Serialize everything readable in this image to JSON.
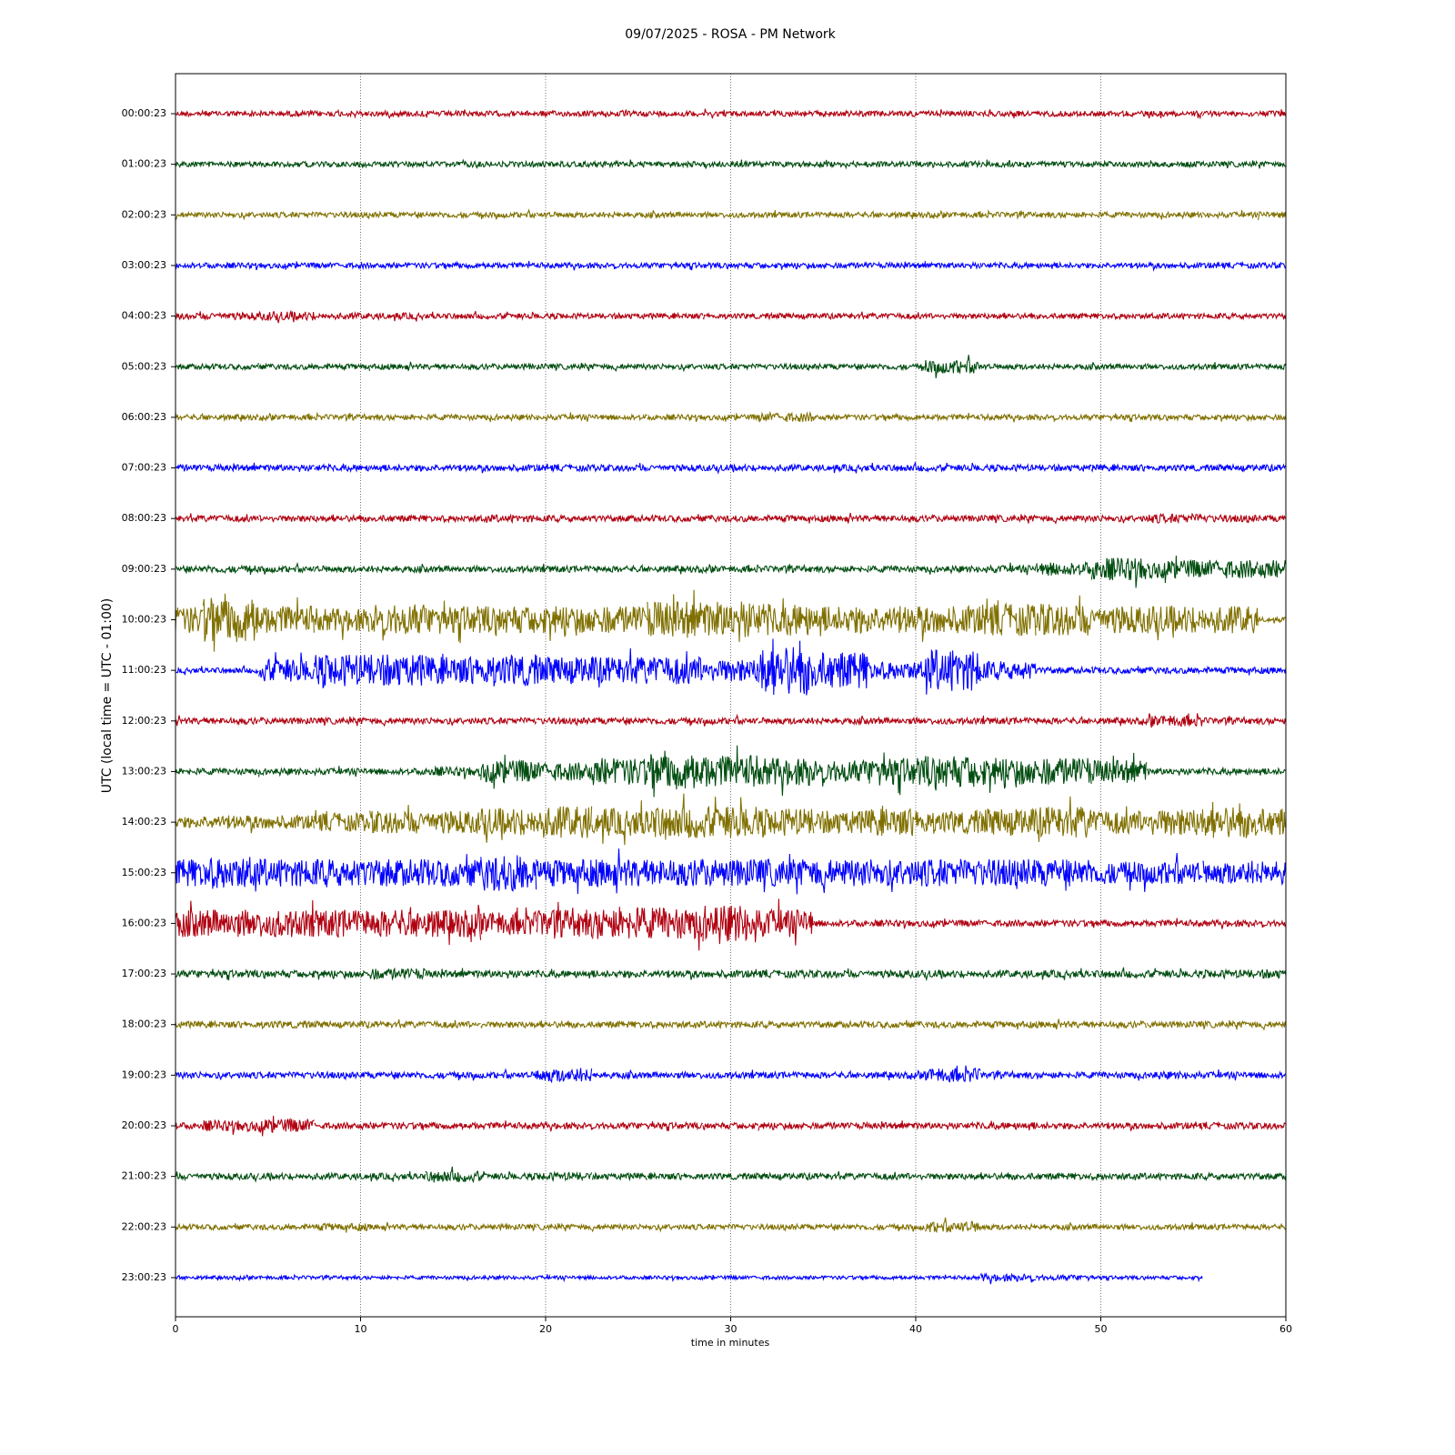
{
  "chart_data": {
    "type": "helicorder",
    "title": "09/07/2025 - ROSA - PM Network",
    "x_label": "time in minutes",
    "y_label": "UTC (local time = UTC - 01:00)",
    "xlim": [
      0,
      60
    ],
    "xticks": [
      0,
      10,
      20,
      30,
      40,
      50,
      60
    ],
    "grid": true,
    "x": [
      0,
      3,
      6,
      9,
      12,
      15,
      18,
      21,
      24,
      27,
      30,
      33,
      36,
      39,
      42,
      45,
      48,
      51,
      54,
      57,
      60
    ],
    "series": [
      {
        "name": "00:00:23",
        "color": "#b00010",
        "values": [
          0.06,
          0.06,
          0.06,
          0.06,
          0.06,
          0.06,
          0.06,
          0.06,
          0.06,
          0.06,
          0.06,
          0.06,
          0.06,
          0.06,
          0.06,
          0.06,
          0.06,
          0.06,
          0.06,
          0.06,
          0.06
        ]
      },
      {
        "name": "01:00:23",
        "color": "#004d10",
        "values": [
          0.06,
          0.06,
          0.06,
          0.06,
          0.06,
          0.06,
          0.06,
          0.06,
          0.06,
          0.06,
          0.06,
          0.06,
          0.06,
          0.06,
          0.06,
          0.06,
          0.06,
          0.06,
          0.06,
          0.06,
          0.06
        ]
      },
      {
        "name": "02:00:23",
        "color": "#807000",
        "values": [
          0.06,
          0.06,
          0.06,
          0.06,
          0.06,
          0.06,
          0.06,
          0.06,
          0.06,
          0.06,
          0.06,
          0.06,
          0.06,
          0.06,
          0.06,
          0.06,
          0.06,
          0.06,
          0.06,
          0.06,
          0.07
        ]
      },
      {
        "name": "03:00:23",
        "color": "#0000ff",
        "values": [
          0.06,
          0.06,
          0.06,
          0.06,
          0.06,
          0.06,
          0.06,
          0.06,
          0.06,
          0.06,
          0.06,
          0.06,
          0.06,
          0.06,
          0.06,
          0.06,
          0.06,
          0.06,
          0.06,
          0.06,
          0.06
        ]
      },
      {
        "name": "04:00:23",
        "color": "#b00010",
        "values": [
          0.07,
          0.08,
          0.1,
          0.07,
          0.07,
          0.06,
          0.06,
          0.06,
          0.06,
          0.06,
          0.06,
          0.06,
          0.06,
          0.06,
          0.06,
          0.06,
          0.06,
          0.06,
          0.06,
          0.06,
          0.06
        ]
      },
      {
        "name": "05:00:23",
        "color": "#004d10",
        "values": [
          0.06,
          0.06,
          0.06,
          0.06,
          0.06,
          0.06,
          0.06,
          0.06,
          0.06,
          0.06,
          0.06,
          0.06,
          0.06,
          0.06,
          0.15,
          0.06,
          0.06,
          0.06,
          0.06,
          0.06,
          0.06
        ]
      },
      {
        "name": "06:00:23",
        "color": "#807000",
        "values": [
          0.06,
          0.06,
          0.06,
          0.06,
          0.06,
          0.06,
          0.06,
          0.06,
          0.06,
          0.06,
          0.06,
          0.1,
          0.06,
          0.06,
          0.06,
          0.06,
          0.06,
          0.06,
          0.06,
          0.06,
          0.06
        ]
      },
      {
        "name": "07:00:23",
        "color": "#0000ff",
        "values": [
          0.07,
          0.07,
          0.07,
          0.07,
          0.07,
          0.07,
          0.07,
          0.07,
          0.07,
          0.07,
          0.07,
          0.07,
          0.07,
          0.07,
          0.07,
          0.07,
          0.07,
          0.07,
          0.07,
          0.07,
          0.07
        ]
      },
      {
        "name": "08:00:23",
        "color": "#b00010",
        "values": [
          0.07,
          0.07,
          0.07,
          0.07,
          0.07,
          0.07,
          0.08,
          0.07,
          0.07,
          0.07,
          0.07,
          0.07,
          0.07,
          0.07,
          0.07,
          0.07,
          0.07,
          0.07,
          0.1,
          0.08,
          0.07
        ]
      },
      {
        "name": "09:00:23",
        "color": "#004d10",
        "values": [
          0.07,
          0.08,
          0.07,
          0.07,
          0.07,
          0.07,
          0.07,
          0.07,
          0.07,
          0.07,
          0.07,
          0.07,
          0.07,
          0.07,
          0.07,
          0.08,
          0.15,
          0.25,
          0.2,
          0.2,
          0.2
        ]
      },
      {
        "name": "10:00:23",
        "color": "#807000",
        "values": [
          0.3,
          0.5,
          0.3,
          0.25,
          0.35,
          0.3,
          0.3,
          0.3,
          0.3,
          0.4,
          0.4,
          0.35,
          0.3,
          0.3,
          0.3,
          0.35,
          0.35,
          0.3,
          0.3,
          0.3,
          0.05
        ]
      },
      {
        "name": "11:00:23",
        "color": "#0000ff",
        "values": [
          0.06,
          0.06,
          0.25,
          0.35,
          0.35,
          0.3,
          0.35,
          0.3,
          0.3,
          0.3,
          0.25,
          0.55,
          0.4,
          0.2,
          0.45,
          0.2,
          0.07,
          0.07,
          0.07,
          0.07,
          0.07
        ]
      },
      {
        "name": "12:00:23",
        "color": "#b00010",
        "values": [
          0.07,
          0.07,
          0.07,
          0.07,
          0.07,
          0.07,
          0.07,
          0.07,
          0.07,
          0.07,
          0.07,
          0.07,
          0.07,
          0.07,
          0.07,
          0.07,
          0.07,
          0.07,
          0.12,
          0.07,
          0.07
        ]
      },
      {
        "name": "13:00:23",
        "color": "#004d10",
        "values": [
          0.07,
          0.07,
          0.07,
          0.07,
          0.07,
          0.1,
          0.25,
          0.2,
          0.3,
          0.4,
          0.35,
          0.3,
          0.25,
          0.3,
          0.35,
          0.3,
          0.3,
          0.25,
          0.07,
          0.07,
          0.07
        ]
      },
      {
        "name": "14:00:23",
        "color": "#807000",
        "values": [
          0.12,
          0.15,
          0.15,
          0.2,
          0.25,
          0.25,
          0.3,
          0.35,
          0.3,
          0.35,
          0.35,
          0.3,
          0.25,
          0.3,
          0.25,
          0.3,
          0.35,
          0.25,
          0.3,
          0.35,
          0.3
        ]
      },
      {
        "name": "15:00:23",
        "color": "#0000ff",
        "values": [
          0.3,
          0.35,
          0.3,
          0.3,
          0.3,
          0.3,
          0.4,
          0.3,
          0.3,
          0.3,
          0.3,
          0.3,
          0.3,
          0.3,
          0.3,
          0.3,
          0.3,
          0.25,
          0.25,
          0.25,
          0.25
        ]
      },
      {
        "name": "16:00:23",
        "color": "#b00010",
        "values": [
          0.3,
          0.3,
          0.3,
          0.3,
          0.3,
          0.3,
          0.25,
          0.3,
          0.35,
          0.35,
          0.4,
          0.3,
          0.07,
          0.07,
          0.07,
          0.07,
          0.07,
          0.07,
          0.07,
          0.07,
          0.07
        ]
      },
      {
        "name": "17:00:23",
        "color": "#004d10",
        "values": [
          0.08,
          0.08,
          0.08,
          0.08,
          0.12,
          0.08,
          0.08,
          0.08,
          0.08,
          0.08,
          0.08,
          0.08,
          0.08,
          0.08,
          0.08,
          0.08,
          0.08,
          0.08,
          0.08,
          0.09,
          0.1
        ]
      },
      {
        "name": "18:00:23",
        "color": "#807000",
        "values": [
          0.07,
          0.07,
          0.08,
          0.07,
          0.07,
          0.07,
          0.07,
          0.07,
          0.07,
          0.07,
          0.07,
          0.07,
          0.07,
          0.07,
          0.07,
          0.07,
          0.07,
          0.07,
          0.07,
          0.07,
          0.07
        ]
      },
      {
        "name": "19:00:23",
        "color": "#0000ff",
        "values": [
          0.07,
          0.07,
          0.07,
          0.07,
          0.07,
          0.07,
          0.07,
          0.15,
          0.07,
          0.07,
          0.07,
          0.07,
          0.07,
          0.07,
          0.15,
          0.07,
          0.07,
          0.07,
          0.08,
          0.07,
          0.07
        ]
      },
      {
        "name": "20:00:23",
        "color": "#b00010",
        "values": [
          0.07,
          0.12,
          0.15,
          0.07,
          0.07,
          0.07,
          0.07,
          0.07,
          0.07,
          0.07,
          0.07,
          0.07,
          0.07,
          0.07,
          0.07,
          0.08,
          0.07,
          0.07,
          0.07,
          0.07,
          0.07
        ]
      },
      {
        "name": "21:00:23",
        "color": "#004d10",
        "values": [
          0.07,
          0.07,
          0.07,
          0.07,
          0.07,
          0.12,
          0.07,
          0.09,
          0.07,
          0.07,
          0.07,
          0.07,
          0.07,
          0.07,
          0.07,
          0.07,
          0.07,
          0.07,
          0.07,
          0.07,
          0.07
        ]
      },
      {
        "name": "22:00:23",
        "color": "#807000",
        "values": [
          0.06,
          0.06,
          0.06,
          0.08,
          0.06,
          0.06,
          0.06,
          0.06,
          0.06,
          0.06,
          0.06,
          0.06,
          0.06,
          0.06,
          0.12,
          0.06,
          0.06,
          0.06,
          0.06,
          0.06,
          0.06
        ]
      },
      {
        "name": "23:00:23",
        "color": "#0000ff",
        "values": [
          0.04,
          0.04,
          0.04,
          0.04,
          0.04,
          0.04,
          0.04,
          0.04,
          0.04,
          0.04,
          0.04,
          0.04,
          0.04,
          0.04,
          0.04,
          0.08,
          0.06,
          0.04,
          0.04,
          null,
          null
        ]
      }
    ]
  }
}
